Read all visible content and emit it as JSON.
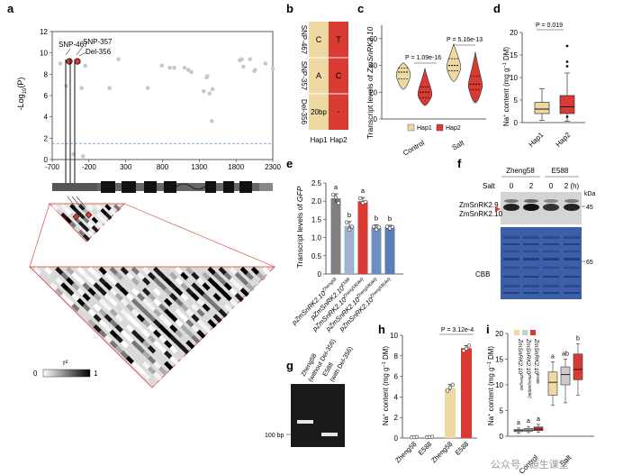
{
  "panels": {
    "a": "a",
    "b": "b",
    "c": "c",
    "d": "d",
    "e": "e",
    "f": "f",
    "g": "g",
    "h": "h",
    "i": "i"
  },
  "colors": {
    "hap1": "#eed9a3",
    "hap2": "#d93a32",
    "gray_bar": "#808080",
    "blue_light": "#9db3cf",
    "blue_mid": "#6f8fc0",
    "blue_dark": "#5a7db5",
    "gene_dark": "#555555",
    "gene_black": "#111111",
    "threshold": "#5b8fc7",
    "dots": "#c8c8c8",
    "snp_red": "#d93a32",
    "cbb_blue": "#3d5fa8"
  },
  "panel_a": {
    "ylabel": "-Log10(P)",
    "ylabel_main": "-Log",
    "ylabel_sub": "10",
    "ylabel_tail": "(P)",
    "yticks": [
      "0",
      "2",
      "4",
      "6",
      "8",
      "10",
      "12"
    ],
    "xticks": [
      "-700",
      "-200",
      "300",
      "800",
      "1300",
      "1800",
      "2300"
    ],
    "threshold": 1.5,
    "snp_labels": [
      "SNP-467",
      "SNP-357",
      "Del-356"
    ],
    "legend_title": "r²",
    "legend_min": "0",
    "legend_max": "1",
    "points": [
      {
        "x": -590,
        "y": 9.0
      },
      {
        "x": -510,
        "y": 6.9
      },
      {
        "x": -410,
        "y": 0.5
      },
      {
        "x": -300,
        "y": 6.7
      },
      {
        "x": -280,
        "y": 0.3
      },
      {
        "x": -250,
        "y": 8.8
      },
      {
        "x": 80,
        "y": 6.7
      },
      {
        "x": 200,
        "y": 9.4
      },
      {
        "x": 600,
        "y": 6.7
      },
      {
        "x": 790,
        "y": 8.8
      },
      {
        "x": 900,
        "y": 8.6
      },
      {
        "x": 960,
        "y": 8.6
      },
      {
        "x": 1100,
        "y": 8.6
      },
      {
        "x": 1150,
        "y": 8.4
      },
      {
        "x": 1190,
        "y": 8.2
      },
      {
        "x": 1360,
        "y": 6.4
      },
      {
        "x": 1400,
        "y": 7.7
      },
      {
        "x": 1410,
        "y": 7.8
      },
      {
        "x": 1440,
        "y": 6.2
      },
      {
        "x": 1470,
        "y": 3.6
      },
      {
        "x": 1480,
        "y": 6.6
      },
      {
        "x": 1850,
        "y": 9.3
      },
      {
        "x": 1880,
        "y": 9.4
      },
      {
        "x": 1900,
        "y": 8.7
      },
      {
        "x": 1990,
        "y": 9.4
      },
      {
        "x": 2050,
        "y": 8.3
      },
      {
        "x": 2060,
        "y": 8.4
      },
      {
        "x": 2200,
        "y": 9.0
      },
      {
        "x": 2300,
        "y": 8.5
      }
    ],
    "red_points": [
      {
        "x": -467,
        "y": 9.2
      },
      {
        "x": -357,
        "y": 9.2
      }
    ]
  },
  "panel_b": {
    "rows": [
      "SNP-467",
      "SNP-357",
      "Del-356"
    ],
    "hap1_values": [
      "C",
      "A",
      "20bp"
    ],
    "hap2_values": [
      "T",
      "C",
      "-"
    ],
    "columns": [
      "Hap1",
      "Hap2"
    ]
  },
  "panel_c": {
    "ylabel": "Transcript levels of ZmSnRK2.10",
    "ylabel_prefix": "Transcript levels of ",
    "ylabel_gene": "ZmSnRK2.10",
    "ylim": [
      0,
      70
    ],
    "yticks": [
      "0",
      "20",
      "40",
      "60"
    ],
    "groups": [
      "Control",
      "Salt"
    ],
    "pvalues": [
      "P = 1.09e-16",
      "P = 5.16e-13"
    ],
    "legend": [
      "Hap1",
      "Hap2"
    ],
    "violins": [
      {
        "group": "Control",
        "hap": "Hap1",
        "min": 22,
        "q1": 30,
        "median": 35,
        "q3": 38,
        "max": 42
      },
      {
        "group": "Control",
        "hap": "Hap2",
        "min": 10,
        "q1": 16,
        "median": 20,
        "q3": 24,
        "max": 38
      },
      {
        "group": "Salt",
        "hap": "Hap1",
        "min": 28,
        "q1": 36,
        "median": 40,
        "q3": 45,
        "max": 56
      },
      {
        "group": "Salt",
        "hap": "Hap2",
        "min": 12,
        "q1": 22,
        "median": 26,
        "q3": 32,
        "max": 50
      }
    ]
  },
  "panel_d": {
    "ylabel": "Na+ content (mg g-1 DM)",
    "ylabel_main": "Na",
    "ylabel_unit": " content (mg g",
    "ylabel_tail": " DM)",
    "ylim": [
      0,
      20
    ],
    "yticks": [
      "0",
      "5",
      "10",
      "15",
      "20"
    ],
    "categories": [
      "Hap1",
      "Hap2"
    ],
    "pvalue": "P = 0.019",
    "boxes": [
      {
        "name": "Hap1",
        "min": 0.5,
        "q1": 2.0,
        "median": 3.0,
        "q3": 4.5,
        "max": 7.5,
        "outliers": []
      },
      {
        "name": "Hap2",
        "min": 0.3,
        "q1": 2.0,
        "median": 3.5,
        "q3": 6.0,
        "max": 11.0,
        "outliers": [
          12.5,
          13.5,
          17.0,
          1.3
        ]
      }
    ]
  },
  "panel_e": {
    "ylabel": "Transcript levels of GFP",
    "ylabel_prefix": "Transcript levels of ",
    "ylabel_gene": "GFP",
    "ylim": [
      0,
      2.5
    ],
    "yticks": [
      "0",
      "0.5",
      "1.0",
      "1.5",
      "2.0",
      "2.5"
    ],
    "categories": [
      {
        "base": "pZmSnRK2.10",
        "sup": "Zheng58"
      },
      {
        "base": "pZmSnRK2.10",
        "sup": "E588"
      },
      {
        "base": "pZmSnRK2.10",
        "sup": "Zheng58(del)"
      },
      {
        "base": "pZmSnRK2.10",
        "sup": "Zheng58(del)"
      },
      {
        "base": "pZmSnRK2.10",
        "sup": "Zheng58(del)"
      }
    ],
    "values": [
      2.08,
      1.32,
      2.0,
      1.27,
      1.28
    ],
    "errors": [
      0.12,
      0.12,
      0.1,
      0.08,
      0.06
    ],
    "letters": [
      "a",
      "b",
      "a",
      "b",
      "b"
    ],
    "points": [
      [
        2.18,
        2.1,
        1.95
      ],
      [
        1.42,
        1.22,
        1.3
      ],
      [
        2.08,
        1.95,
        1.98
      ],
      [
        1.3,
        1.22,
        1.28
      ],
      [
        1.3,
        1.25,
        1.29
      ]
    ]
  },
  "panel_f": {
    "lines": [
      "Zheng58",
      "E588"
    ],
    "timepoints": [
      "0",
      "2",
      "0",
      "2 (h)"
    ],
    "salt_label": "Salt",
    "protein_labels": [
      "ZmSnRK2.9",
      "ZmSnRK2.10"
    ],
    "kda_label": "kDa",
    "marker_45": "45",
    "marker_65": "65",
    "stain_label": "CBB"
  },
  "panel_g": {
    "lanes": [
      {
        "name": "Zheng58",
        "sub": "(without Del-356)"
      },
      {
        "name": "E588",
        "sub": "(with Del-356)"
      }
    ],
    "marker": "100 bp"
  },
  "panel_h": {
    "ylabel": "Na+ content (mg g-1 DM)",
    "ylabel_main": "Na",
    "ylabel_unit": " content (mg g",
    "ylabel_tail": " DM)",
    "ylim": [
      0,
      10
    ],
    "yticks": [
      "0",
      "2",
      "4",
      "6",
      "8",
      "10"
    ],
    "categories": [
      "Zheng58",
      "E588",
      "Zheng58",
      "E588"
    ],
    "groups": [
      "Control",
      "Salt"
    ],
    "values": [
      0.08,
      0.1,
      4.9,
      8.75
    ],
    "errors": [
      0.02,
      0.02,
      0.3,
      0.25
    ],
    "pvalue": "P = 3.12e-4",
    "points": [
      [
        0.06,
        0.08,
        0.1
      ],
      [
        0.08,
        0.1,
        0.12
      ],
      [
        4.6,
        4.9,
        5.2
      ],
      [
        8.5,
        8.7,
        9.0
      ]
    ]
  },
  "panel_i": {
    "ylabel": "Na+ content (mg g-1 DM)",
    "ylabel_main": "Na",
    "ylabel_unit": " content (mg g",
    "ylabel_tail": " DM)",
    "ylim": [
      0,
      20
    ],
    "yticks": [
      "0",
      "5",
      "10",
      "15",
      "20"
    ],
    "legend": [
      {
        "base": "ZmSnRK2.10",
        "sup": "Zheng58"
      },
      {
        "base": "ZmSnRK2.10",
        "sup": "Zheng58(del)"
      },
      {
        "base": "ZmSnRK2.10",
        "sup": "E588"
      }
    ],
    "groups": [
      "Control",
      "Salt"
    ],
    "letters_control": [
      "a",
      "a",
      "a"
    ],
    "letters_salt": [
      "a",
      "ab",
      "b"
    ],
    "boxes": [
      {
        "group": "Control",
        "min": 0.6,
        "q1": 0.9,
        "median": 1.1,
        "q3": 1.3,
        "max": 1.6
      },
      {
        "group": "Control",
        "min": 0.7,
        "q1": 1.0,
        "median": 1.2,
        "q3": 1.5,
        "max": 1.9
      },
      {
        "group": "Control",
        "min": 0.8,
        "q1": 1.1,
        "median": 1.4,
        "q3": 1.8,
        "max": 2.3
      },
      {
        "group": "Salt",
        "min": 6.0,
        "q1": 8.0,
        "median": 10.5,
        "q3": 12.5,
        "max": 14.5
      },
      {
        "group": "Salt",
        "min": 6.5,
        "q1": 10.0,
        "median": 12.0,
        "q3": 13.5,
        "max": 15.0
      },
      {
        "group": "Salt",
        "min": 8.0,
        "q1": 11.0,
        "median": 13.0,
        "q3": 16.0,
        "max": 18.0
      }
    ]
  },
  "watermark": "公众号 · 源生课堂"
}
